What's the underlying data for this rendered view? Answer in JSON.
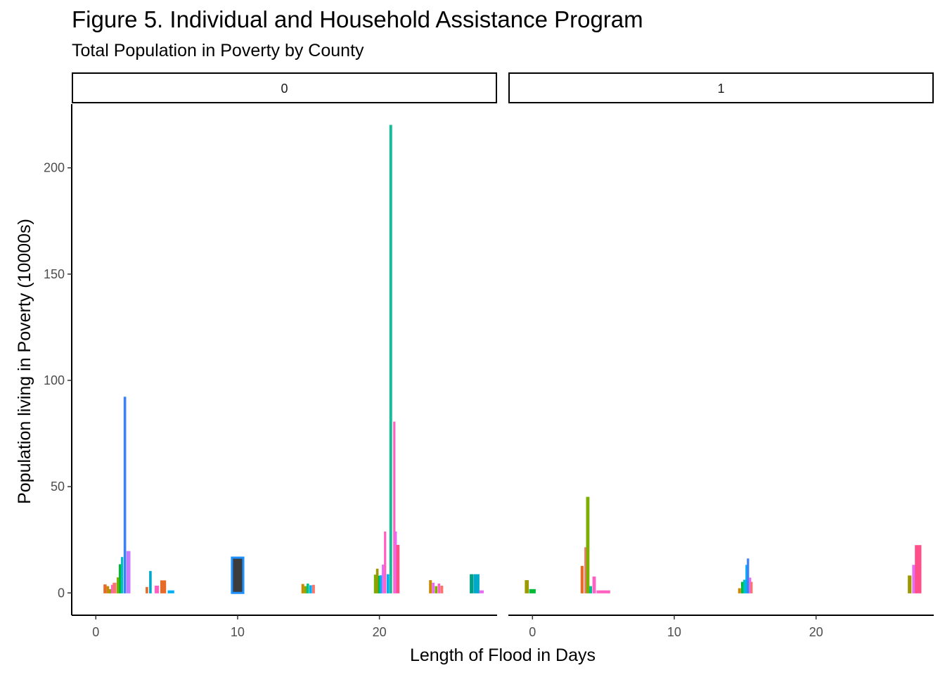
{
  "chart_data": {
    "type": "bar",
    "title": "Figure 5. Individual and Household Assistance Program",
    "subtitle": "Total Population in Poverty by County",
    "xlabel": "Length of Flood in Days",
    "ylabel": "Population living in Poverty (10000s)",
    "xlim": [
      -1.7,
      28.3
    ],
    "ylim": [
      -10.5,
      230
    ],
    "x_ticks": [
      0,
      10,
      20
    ],
    "y_ticks": [
      0,
      50,
      100,
      150,
      200
    ],
    "grid": false,
    "legend": "none",
    "panels": [
      {
        "strip": "0",
        "bars": [
          {
            "x": 0.65,
            "w": 0.16,
            "y": 3.8,
            "color": "#E76B28"
          },
          {
            "x": 0.85,
            "w": 0.12,
            "y": 3.0,
            "color": "#C88A00"
          },
          {
            "x": 1.0,
            "w": 0.12,
            "y": 1.6,
            "color": "#9C9A00"
          },
          {
            "x": 1.15,
            "w": 0.1,
            "y": 3.6,
            "color": "#FF61C3"
          },
          {
            "x": 1.32,
            "w": 0.2,
            "y": 4.6,
            "color": "#F8766D"
          },
          {
            "x": 1.55,
            "w": 0.1,
            "y": 7.1,
            "color": "#7CAE00"
          },
          {
            "x": 1.7,
            "w": 0.1,
            "y": 13.3,
            "color": "#00BA38"
          },
          {
            "x": 1.85,
            "w": 0.1,
            "y": 16.7,
            "color": "#00BFC4"
          },
          {
            "x": 2.05,
            "w": 0.12,
            "y": 92.1,
            "color": "#3C80F5"
          },
          {
            "x": 2.3,
            "w": 0.22,
            "y": 19.5,
            "color": "#C77CFF"
          },
          {
            "x": 3.6,
            "w": 0.12,
            "y": 2.6,
            "color": "#E76B28"
          },
          {
            "x": 3.85,
            "w": 0.12,
            "y": 10.1,
            "color": "#00A9C9"
          },
          {
            "x": 4.3,
            "w": 0.25,
            "y": 3.2,
            "color": "#FF61C3"
          },
          {
            "x": 4.75,
            "w": 0.35,
            "y": 5.7,
            "color": "#E76B28"
          },
          {
            "x": 5.3,
            "w": 0.4,
            "y": 1.0,
            "color": "#00B0F6"
          },
          {
            "x": 10.0,
            "w": 0.8,
            "y": 16.6,
            "color": "#3C3C3C",
            "stroke": "#1E90FF"
          },
          {
            "x": 14.6,
            "w": 0.14,
            "y": 4.0,
            "color": "#C88A00"
          },
          {
            "x": 14.8,
            "w": 0.14,
            "y": 3.0,
            "color": "#7CAE00"
          },
          {
            "x": 14.95,
            "w": 0.12,
            "y": 4.2,
            "color": "#00C08B"
          },
          {
            "x": 15.15,
            "w": 0.12,
            "y": 3.4,
            "color": "#00B0F6"
          },
          {
            "x": 15.35,
            "w": 0.14,
            "y": 3.6,
            "color": "#F8766D"
          },
          {
            "x": 19.7,
            "w": 0.12,
            "y": 8.4,
            "color": "#7CAE00"
          },
          {
            "x": 19.85,
            "w": 0.12,
            "y": 11.2,
            "color": "#9C9A00"
          },
          {
            "x": 20.0,
            "w": 0.12,
            "y": 7.9,
            "color": "#00BA38"
          },
          {
            "x": 20.1,
            "w": 0.12,
            "y": 8.1,
            "color": "#00B0F6"
          },
          {
            "x": 20.25,
            "w": 0.1,
            "y": 13.1,
            "color": "#E76BF3"
          },
          {
            "x": 20.4,
            "w": 0.1,
            "y": 28.7,
            "color": "#FF61C3"
          },
          {
            "x": 20.6,
            "w": 0.12,
            "y": 8.6,
            "color": "#00B0F6"
          },
          {
            "x": 20.8,
            "w": 0.14,
            "y": 220.0,
            "color": "#1DB99A"
          },
          {
            "x": 21.05,
            "w": 0.1,
            "y": 80.4,
            "color": "#FF61C3"
          },
          {
            "x": 21.15,
            "w": 0.1,
            "y": 28.7,
            "color": "#E76BF3"
          },
          {
            "x": 21.3,
            "w": 0.18,
            "y": 22.4,
            "color": "#FF4F8B"
          },
          {
            "x": 23.6,
            "w": 0.14,
            "y": 5.8,
            "color": "#C88A00"
          },
          {
            "x": 23.8,
            "w": 0.12,
            "y": 4.6,
            "color": "#E76BF3"
          },
          {
            "x": 24.0,
            "w": 0.12,
            "y": 3.0,
            "color": "#7CAE00"
          },
          {
            "x": 24.2,
            "w": 0.12,
            "y": 4.2,
            "color": "#FF61C3"
          },
          {
            "x": 24.4,
            "w": 0.14,
            "y": 3.2,
            "color": "#F8766D"
          },
          {
            "x": 26.5,
            "w": 0.2,
            "y": 8.6,
            "color": "#00A087"
          },
          {
            "x": 26.85,
            "w": 0.35,
            "y": 8.6,
            "color": "#00A9C9"
          },
          {
            "x": 27.2,
            "w": 0.25,
            "y": 1.0,
            "color": "#E76BF3"
          }
        ]
      },
      {
        "strip": "1",
        "bars": [
          {
            "x": -0.4,
            "w": 0.22,
            "y": 5.8,
            "color": "#9C9A00"
          },
          {
            "x": 0.0,
            "w": 0.4,
            "y": 1.6,
            "color": "#00BA38"
          },
          {
            "x": 3.5,
            "w": 0.15,
            "y": 12.5,
            "color": "#E76B28"
          },
          {
            "x": 3.75,
            "w": 0.12,
            "y": 21.3,
            "color": "#F8766D"
          },
          {
            "x": 3.9,
            "w": 0.18,
            "y": 45.0,
            "color": "#7CAE00"
          },
          {
            "x": 4.1,
            "w": 0.14,
            "y": 3.0,
            "color": "#00C08B"
          },
          {
            "x": 4.35,
            "w": 0.18,
            "y": 7.5,
            "color": "#FF61C3"
          },
          {
            "x": 5.0,
            "w": 0.9,
            "y": 1.0,
            "color": "#FF61C3"
          },
          {
            "x": 14.6,
            "w": 0.14,
            "y": 2.0,
            "color": "#C88A00"
          },
          {
            "x": 14.8,
            "w": 0.12,
            "y": 5.0,
            "color": "#00BA38"
          },
          {
            "x": 14.95,
            "w": 0.12,
            "y": 6.0,
            "color": "#00BFC4"
          },
          {
            "x": 15.1,
            "w": 0.1,
            "y": 13.0,
            "color": "#00B0F6"
          },
          {
            "x": 15.2,
            "w": 0.1,
            "y": 16.0,
            "color": "#3C80F5"
          },
          {
            "x": 15.35,
            "w": 0.1,
            "y": 7.0,
            "color": "#E76BF3"
          },
          {
            "x": 15.45,
            "w": 0.1,
            "y": 5.0,
            "color": "#F8766D"
          },
          {
            "x": 26.6,
            "w": 0.2,
            "y": 8.0,
            "color": "#9C9A00"
          },
          {
            "x": 26.9,
            "w": 0.18,
            "y": 13.0,
            "color": "#E76BF3"
          },
          {
            "x": 27.2,
            "w": 0.4,
            "y": 22.3,
            "color": "#FF4F8B"
          }
        ]
      }
    ]
  }
}
